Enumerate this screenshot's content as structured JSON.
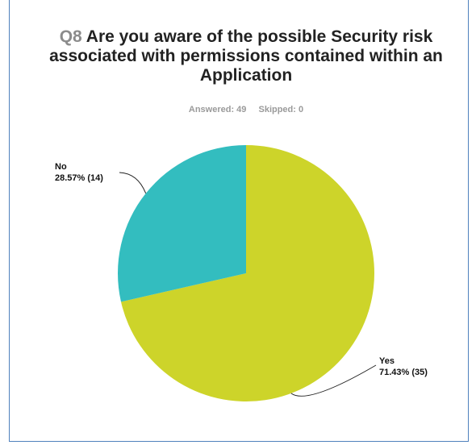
{
  "survey": {
    "question_number": "Q8",
    "question_text": "Are you aware of the possible Security risk associated with permissions contained within an Application",
    "answered_label": "Answered: 49",
    "skipped_label": "Skipped: 0"
  },
  "chart_data": {
    "type": "pie",
    "title": "Q8 Are you aware of the possible Security risk associated with permissions contained within an Application",
    "slices": [
      {
        "name": "Yes",
        "percent": 71.43,
        "count": 35,
        "color": "#cdd42a",
        "label": "Yes",
        "value_label": "71.43% (35)"
      },
      {
        "name": "No",
        "percent": 28.57,
        "count": 14,
        "color": "#33bdbf",
        "label": "No",
        "value_label": "28.57% (14)"
      }
    ],
    "answered": 49,
    "skipped": 0
  }
}
